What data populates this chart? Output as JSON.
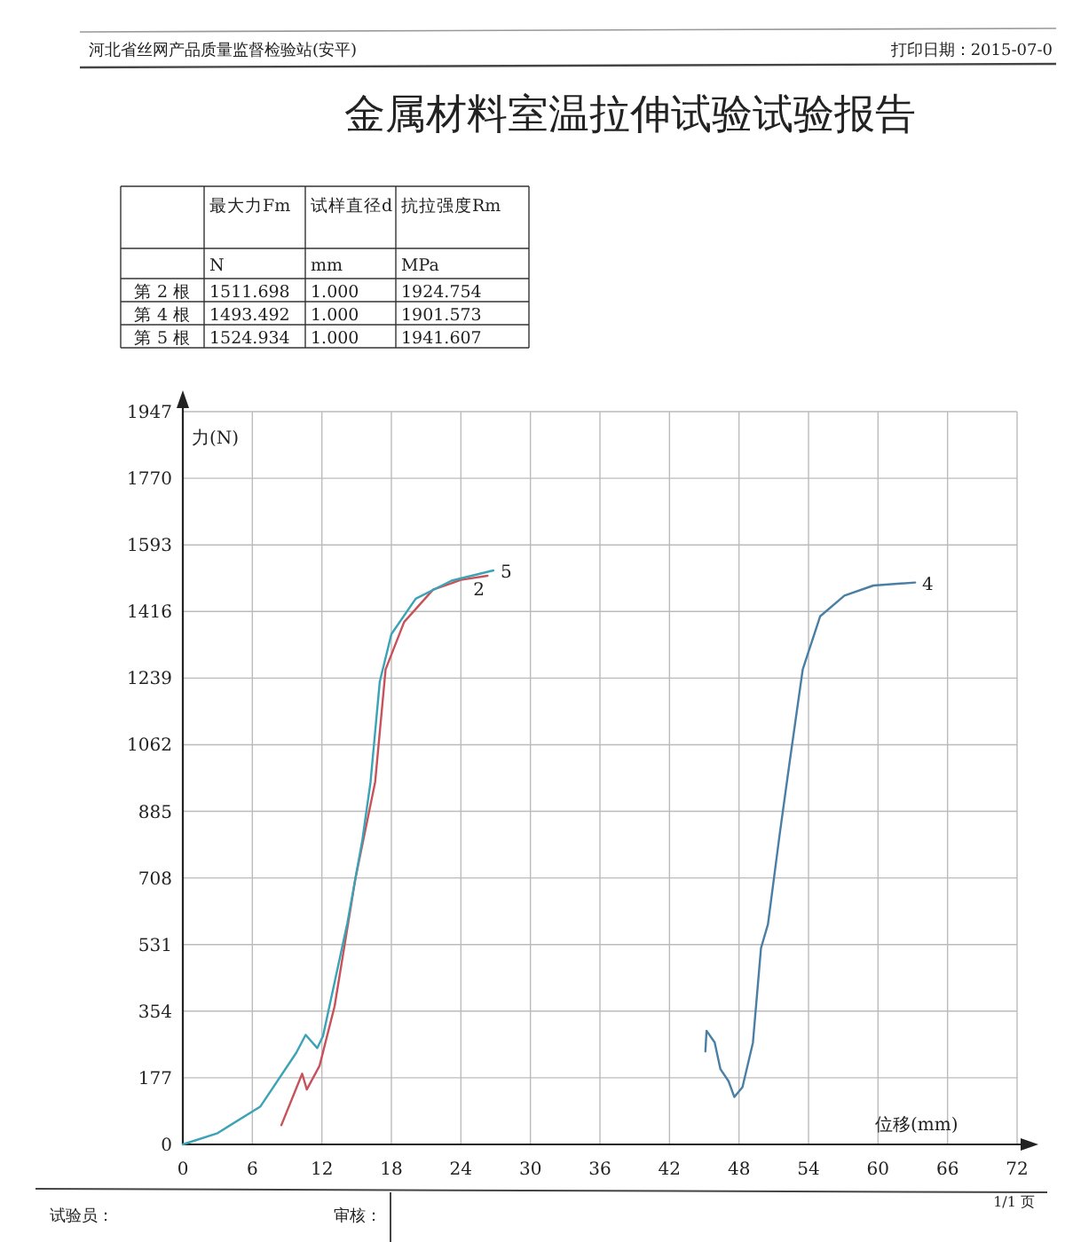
{
  "chart_data": {
    "type": "line",
    "title": "金属材料室温拉伸试验试验报告",
    "xlabel": "位移(mm)",
    "ylabel": "力(N)",
    "xlim": [
      0,
      72
    ],
    "xticks": [
      0,
      6,
      12,
      18,
      24,
      30,
      36,
      42,
      48,
      54,
      60,
      66,
      72
    ],
    "ylim": [
      0,
      1947
    ],
    "yticks": [
      0,
      177,
      354,
      531,
      708,
      885,
      1062,
      1239,
      1416,
      1593,
      1770,
      1947
    ],
    "grid": true,
    "legend": false,
    "marker": "none",
    "line_style": "solid",
    "series": [
      {
        "name": "2",
        "color": "#c8525a",
        "x": [
          8.5,
          10.3,
          10.7,
          11.8,
          13.1,
          14.9,
          16.0,
          16.6,
          17.5,
          19.1,
          21.6,
          24.0,
          26.3
        ],
        "values": [
          51,
          188,
          146,
          209,
          367,
          707,
          873,
          963,
          1262,
          1388,
          1474,
          1500,
          1511
        ]
      },
      {
        "name": "4",
        "color": "#4a7fa5",
        "x": [
          45.1,
          45.2,
          45.9,
          46.4,
          47.1,
          47.6,
          48.3,
          49.2,
          49.9,
          50.5,
          51.5,
          52.3,
          53.5,
          55.0,
          57.1,
          59.6,
          63.2
        ],
        "values": [
          247,
          302,
          271,
          200,
          168,
          126,
          152,
          270,
          522,
          585,
          821,
          1000,
          1262,
          1403,
          1458,
          1485,
          1493
        ]
      },
      {
        "name": "5",
        "color": "#3aa3b5",
        "x": [
          0,
          3,
          6.7,
          9.8,
          10.6,
          11.6,
          12.1,
          14.2,
          15.5,
          16.2,
          17.0,
          18.0,
          20.1,
          23.2,
          26.8
        ],
        "values": [
          0,
          30,
          101,
          244,
          291,
          256,
          288,
          588,
          810,
          963,
          1230,
          1356,
          1450,
          1498,
          1525
        ]
      }
    ],
    "annotations": [
      "河北省丝网产品质量监督检验站(安平)",
      "打印日期：2015-07-0",
      "最大力Fm",
      "试样直径d",
      "抗拉强度Rm",
      "N",
      "mm",
      "MPa",
      "第 2 根",
      "1511.698",
      "1.000",
      "1924.754",
      "第 4 根",
      "1493.492",
      "1.000",
      "1901.573",
      "第 5 根",
      "1524.934",
      "1.000",
      "1941.607",
      "试验员：",
      "审核：",
      "1/1 页"
    ]
  }
}
